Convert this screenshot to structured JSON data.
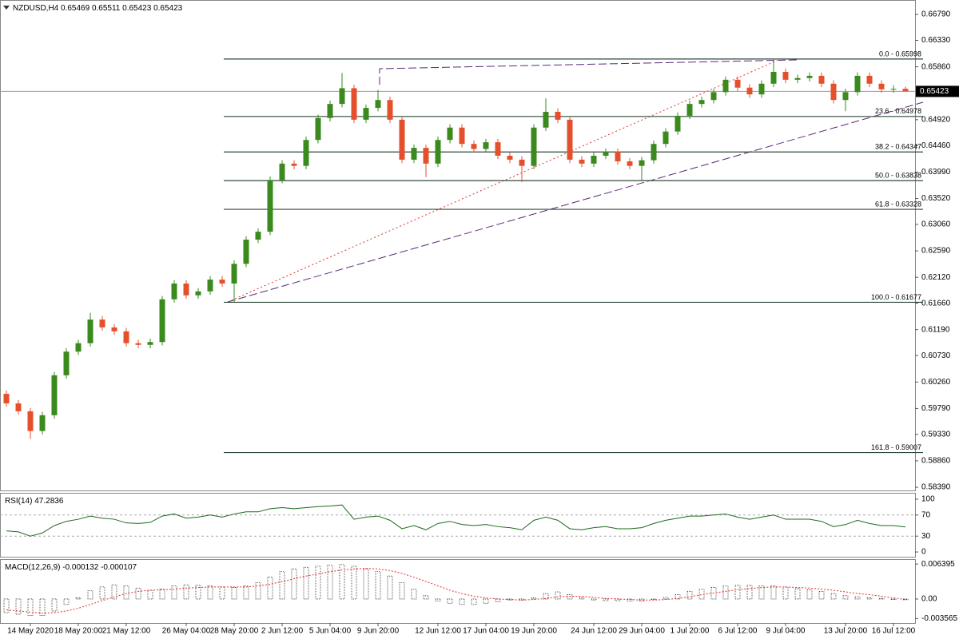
{
  "chart_data": [
    {
      "type": "candlestick",
      "title": "NZDUSD,H4",
      "categories": [
        null,
        null,
        "14 May 2020",
        null,
        null,
        null,
        "18 May 20:00",
        null,
        null,
        null,
        "21 May 12:00",
        null,
        null,
        null,
        null,
        "26 May 04:00",
        null,
        null,
        null,
        "28 May 20:00",
        null,
        null,
        null,
        "2 Jun 12:00",
        null,
        null,
        null,
        "5 Jun 04:00",
        null,
        null,
        null,
        "9 Jun 20:00",
        null,
        null,
        null,
        null,
        "12 Jun 12:00",
        null,
        null,
        null,
        "17 Jun 04:00",
        null,
        null,
        null,
        "19 Jun 20:00",
        null,
        null,
        null,
        null,
        "24 Jun 12:00",
        null,
        null,
        null,
        "29 Jun 04:00",
        null,
        null,
        null,
        "1 Jul 20:00",
        null,
        null,
        null,
        "6 Jul 12:00",
        null,
        null,
        null,
        "9 Jul 04:00",
        null,
        null,
        null,
        null,
        "13 Jul 20:00",
        null,
        null,
        null,
        "16 Jul 12:00",
        null
      ],
      "open": [
        0.6005,
        0.5988,
        0.5974,
        0.5939,
        0.5967,
        0.6038,
        0.608,
        0.6095,
        0.6137,
        0.6123,
        0.6116,
        0.6095,
        0.6092,
        0.6097,
        0.6173,
        0.6201,
        0.618,
        0.6187,
        0.6208,
        0.6201,
        0.6236,
        0.6279,
        0.6293,
        0.6385,
        0.6414,
        0.641,
        0.6456,
        0.6495,
        0.652,
        0.6548,
        0.6492,
        0.6513,
        0.6527,
        0.6492,
        0.6421,
        0.6442,
        0.6414,
        0.6456,
        0.6478,
        0.6449,
        0.644,
        0.6452,
        0.6428,
        0.6421,
        0.641,
        0.6478,
        0.6506,
        0.6492,
        0.6421,
        0.6414,
        0.6428,
        0.6435,
        0.6418,
        0.641,
        0.642,
        0.6449,
        0.6471,
        0.6499,
        0.652,
        0.6527,
        0.6541,
        0.6563,
        0.6549,
        0.6537,
        0.6556,
        0.6577,
        0.6563,
        0.6566,
        0.657,
        0.6556,
        0.6527,
        0.6541,
        0.657,
        0.6556,
        0.6546,
        0.65469
      ],
      "high": [
        0.6011,
        0.5994,
        0.598,
        0.5973,
        0.6044,
        0.6086,
        0.6101,
        0.6149,
        0.6143,
        0.6129,
        0.6122,
        0.6101,
        0.6103,
        0.6179,
        0.6207,
        0.6207,
        0.6193,
        0.6214,
        0.6214,
        0.6242,
        0.6285,
        0.6299,
        0.6391,
        0.642,
        0.642,
        0.6462,
        0.6501,
        0.6526,
        0.6575,
        0.6554,
        0.6519,
        0.6545,
        0.6533,
        0.6498,
        0.6448,
        0.6448,
        0.6462,
        0.6484,
        0.6484,
        0.6455,
        0.6458,
        0.6458,
        0.6434,
        0.6427,
        0.6484,
        0.653,
        0.6512,
        0.6498,
        0.6427,
        0.6434,
        0.6441,
        0.6441,
        0.6424,
        0.6426,
        0.6455,
        0.6477,
        0.6505,
        0.6526,
        0.6533,
        0.6547,
        0.6569,
        0.6569,
        0.6555,
        0.6562,
        0.66,
        0.6583,
        0.6572,
        0.6576,
        0.6576,
        0.6562,
        0.6547,
        0.6576,
        0.6576,
        0.6562,
        0.6553,
        0.65511
      ],
      "low": [
        0.5982,
        0.5968,
        0.5925,
        0.5933,
        0.5961,
        0.6032,
        0.6074,
        0.6089,
        0.6117,
        0.611,
        0.6089,
        0.6086,
        0.6086,
        0.6091,
        0.6167,
        0.6174,
        0.6174,
        0.6181,
        0.6195,
        0.6168,
        0.623,
        0.6273,
        0.6287,
        0.6379,
        0.6404,
        0.6404,
        0.645,
        0.6489,
        0.6514,
        0.6486,
        0.6486,
        0.6507,
        0.6486,
        0.6415,
        0.6415,
        0.639,
        0.6408,
        0.645,
        0.6443,
        0.6434,
        0.6434,
        0.6422,
        0.6415,
        0.6381,
        0.6404,
        0.6472,
        0.6486,
        0.6415,
        0.6408,
        0.6408,
        0.6422,
        0.6412,
        0.6404,
        0.6384,
        0.6414,
        0.6443,
        0.6465,
        0.6493,
        0.6514,
        0.6521,
        0.6535,
        0.6543,
        0.6531,
        0.6531,
        0.655,
        0.6557,
        0.6557,
        0.656,
        0.655,
        0.6521,
        0.6507,
        0.6535,
        0.655,
        0.654,
        0.654,
        0.65423
      ],
      "close": [
        0.5988,
        0.5974,
        0.5939,
        0.5967,
        0.6038,
        0.608,
        0.6095,
        0.6137,
        0.6123,
        0.6116,
        0.6095,
        0.6092,
        0.6097,
        0.6173,
        0.6201,
        0.618,
        0.6187,
        0.6208,
        0.6201,
        0.6236,
        0.6279,
        0.6293,
        0.6385,
        0.6414,
        0.641,
        0.6456,
        0.6495,
        0.652,
        0.6548,
        0.6492,
        0.6513,
        0.6527,
        0.6492,
        0.6421,
        0.6442,
        0.6414,
        0.6456,
        0.6478,
        0.6449,
        0.644,
        0.6452,
        0.6428,
        0.6421,
        0.641,
        0.6478,
        0.6506,
        0.6492,
        0.6421,
        0.6414,
        0.6428,
        0.6435,
        0.6418,
        0.641,
        0.642,
        0.6449,
        0.6471,
        0.6499,
        0.652,
        0.6527,
        0.6541,
        0.6563,
        0.6549,
        0.6537,
        0.6556,
        0.6577,
        0.6563,
        0.6566,
        0.657,
        0.6556,
        0.6527,
        0.6541,
        0.657,
        0.6556,
        0.6546,
        0.65469,
        0.65423
      ],
      "up_color": "#3a8a1e",
      "down_color": "#e5502c",
      "ylim": [
        0.5832,
        0.6699
      ],
      "yticks": [
        {
          "value": 0.6679,
          "label": "0.66790"
        },
        {
          "value": 0.6633,
          "label": "0.66330"
        },
        {
          "value": 0.6586,
          "label": "0.65860"
        },
        {
          "value": 0.6492,
          "label": "0.64920"
        },
        {
          "value": 0.6446,
          "label": "0.64460"
        },
        {
          "value": 0.6399,
          "label": "0.63990"
        },
        {
          "value": 0.6352,
          "label": "0.63520"
        },
        {
          "value": 0.6306,
          "label": "0.63060"
        },
        {
          "value": 0.6259,
          "label": "0.62590"
        },
        {
          "value": 0.6212,
          "label": "0.62120"
        },
        {
          "value": 0.6166,
          "label": "0.61660"
        },
        {
          "value": 0.6119,
          "label": "0.61190"
        },
        {
          "value": 0.6073,
          "label": "0.60730"
        },
        {
          "value": 0.6026,
          "label": "0.60260"
        },
        {
          "value": 0.5979,
          "label": "0.59790"
        },
        {
          "value": 0.5933,
          "label": "0.59330"
        },
        {
          "value": 0.5886,
          "label": "0.58860"
        },
        {
          "value": 0.5839,
          "label": "0.58390"
        }
      ],
      "current_price": 0.65423,
      "fib_levels": [
        {
          "value": 0.65998,
          "label": "0.0 - 0.65998"
        },
        {
          "value": 0.64978,
          "label": "23.6 - 0.64978"
        },
        {
          "value": 0.64347,
          "label": "38.2 - 0.64347"
        },
        {
          "value": 0.63838,
          "label": "50.0 - 0.63838"
        },
        {
          "value": 0.63328,
          "label": "61.8 - 0.63328"
        },
        {
          "value": 0.61677,
          "label": "100.0 - 0.61677"
        },
        {
          "value": 0.59007,
          "label": "161.8 - 0.59007"
        }
      ],
      "fib_color": "#2f4a3a"
    },
    {
      "type": "line",
      "title": "RSI(14)",
      "values": [
        40,
        38,
        30,
        36,
        50,
        58,
        62,
        68,
        64,
        62,
        55,
        54,
        56,
        68,
        72,
        64,
        66,
        70,
        66,
        72,
        76,
        76,
        82,
        84,
        82,
        84,
        86,
        87,
        89,
        62,
        66,
        68,
        60,
        44,
        50,
        42,
        54,
        58,
        52,
        50,
        52,
        48,
        46,
        42,
        60,
        66,
        60,
        44,
        42,
        46,
        48,
        44,
        44,
        46,
        54,
        60,
        64,
        68,
        68,
        70,
        72,
        66,
        62,
        66,
        70,
        62,
        62,
        62,
        58,
        48,
        52,
        60,
        54,
        50,
        50,
        47.2836
      ],
      "color": "#1d6a1d",
      "ylim": [
        -9,
        112
      ],
      "yticks": [
        100,
        70,
        30,
        0
      ],
      "levels": [
        70,
        30
      ]
    },
    {
      "type": "macd",
      "title": "MACD(12,26,9)",
      "histogram": [
        -0.0025,
        -0.0028,
        -0.003,
        -0.003,
        -0.0022,
        -0.001,
        0.0002,
        0.0015,
        0.0022,
        0.0026,
        0.0024,
        0.002,
        0.0016,
        0.0018,
        0.0024,
        0.0026,
        0.0025,
        0.0024,
        0.0022,
        0.0021,
        0.0024,
        0.003,
        0.004,
        0.005,
        0.0055,
        0.0058,
        0.006,
        0.0062,
        0.0063,
        0.006,
        0.0055,
        0.005,
        0.0042,
        0.003,
        0.0018,
        0.0006,
        -0.0004,
        -0.0008,
        -0.001,
        -0.001,
        -0.0008,
        -0.0005,
        -0.0002,
        -0.0002,
        0.0002,
        0.001,
        0.0013,
        0.0008,
        0.0002,
        -0.0002,
        -0.0003,
        -0.0003,
        -0.0004,
        -0.0004,
        -0.0001,
        0.0003,
        0.0008,
        0.0014,
        0.0018,
        0.0021,
        0.0024,
        0.0025,
        0.0025,
        0.0024,
        0.0024,
        0.0022,
        0.0019,
        0.0017,
        0.0014,
        0.001,
        0.0006,
        0.0004,
        0.0002,
        0.0001,
        -0.0001,
        -0.000132
      ],
      "signal": [
        -0.002,
        -0.0022,
        -0.0024,
        -0.0026,
        -0.0025,
        -0.0022,
        -0.0017,
        -0.001,
        -0.0003,
        0.0004,
        0.001,
        0.0014,
        0.0016,
        0.0017,
        0.0018,
        0.002,
        0.0021,
        0.0022,
        0.0022,
        0.0022,
        0.0022,
        0.0024,
        0.0027,
        0.0032,
        0.0037,
        0.0042,
        0.0046,
        0.005,
        0.0053,
        0.0055,
        0.0056,
        0.0055,
        0.0052,
        0.0047,
        0.004,
        0.0032,
        0.0024,
        0.0016,
        0.001,
        0.0005,
        0.0002,
        0,
        -0.0001,
        -0.0002,
        -0.0001,
        0.0001,
        0.0004,
        0.0005,
        0.0005,
        0.0003,
        0.0001,
        0,
        -0.0001,
        -0.0002,
        -0.0002,
        -0.0001,
        0.0001,
        0.0004,
        0.0008,
        0.0011,
        0.0014,
        0.0017,
        0.0019,
        0.0021,
        0.0022,
        0.0022,
        0.0021,
        0.002,
        0.0018,
        0.0016,
        0.0013,
        0.001,
        0.0008,
        0.0005,
        0.0002,
        -0.000107
      ],
      "histogram_color": "#333333",
      "signal_color": "#e0302a",
      "ylim": [
        -0.0044,
        0.0073
      ],
      "yticks": [
        0.006395,
        {
          "value": 0,
          "label": "0.00"
        },
        -0.003565
      ]
    }
  ]
}
